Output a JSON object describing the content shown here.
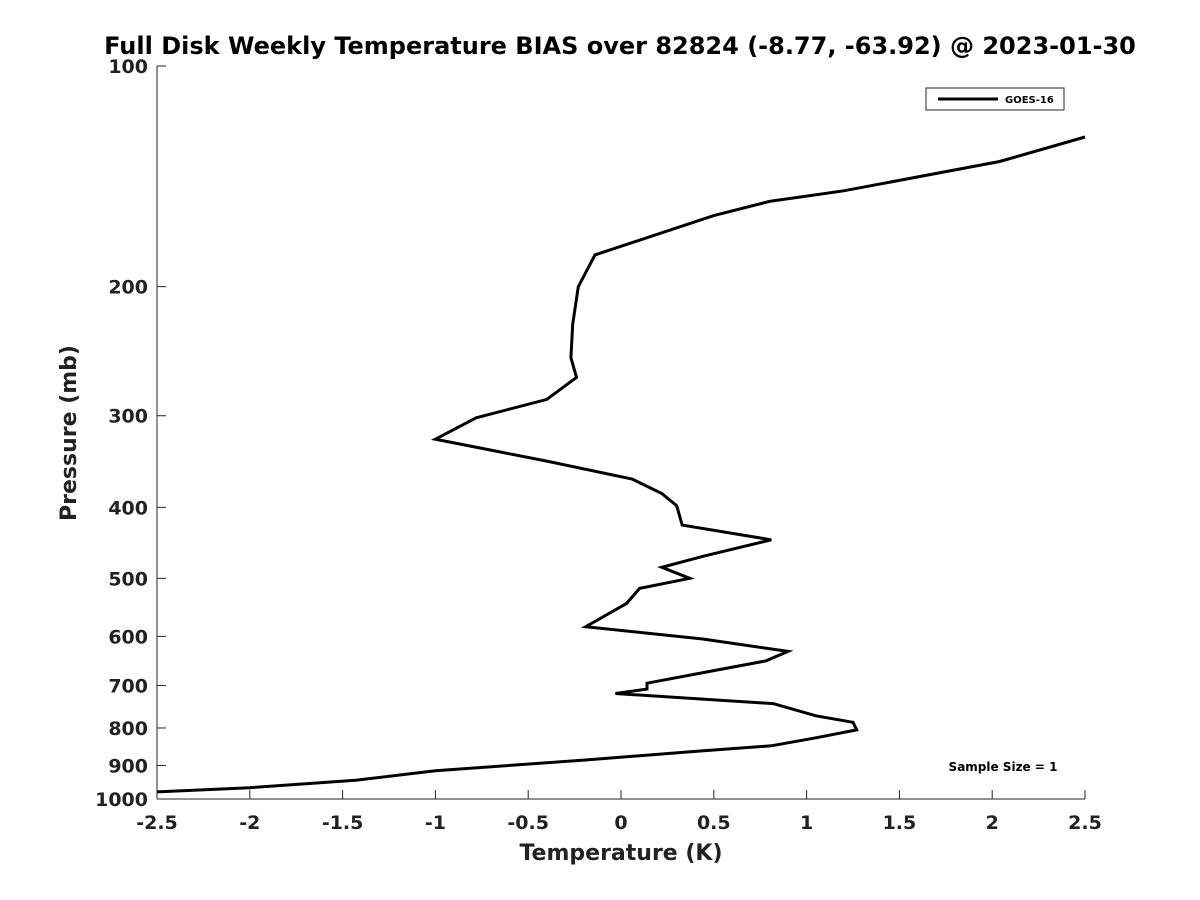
{
  "chart_data": {
    "type": "line",
    "title": "Full Disk Weekly Temperature BIAS over 82824 (-8.77, -63.92) @ 2023-01-30",
    "xlabel": "Temperature (K)",
    "ylabel": "Pressure (mb)",
    "xlim": [
      -2.5,
      2.5
    ],
    "ylim": [
      100,
      1000
    ],
    "y_scale": "log",
    "y_reversed": true,
    "grid": false,
    "x_ticks": [
      -2.5,
      -2,
      -1.5,
      -1,
      -0.5,
      0,
      0.5,
      1,
      1.5,
      2,
      2.5
    ],
    "x_tick_labels": [
      "-2.5",
      "-2",
      "-1.5",
      "-1",
      "-0.5",
      "0",
      "0.5",
      "1",
      "1.5",
      "2",
      "2.5"
    ],
    "y_ticks": [
      100,
      200,
      300,
      400,
      500,
      600,
      700,
      800,
      900,
      1000
    ],
    "y_tick_labels": [
      "100",
      "200",
      "300",
      "400",
      "500",
      "600",
      "700",
      "800",
      "900",
      "1000"
    ],
    "legend_position": "top-right",
    "annotation": "Sample Size = 1",
    "series": [
      {
        "name": "GOES-16",
        "color": "#000000",
        "points": [
          [
            2.5,
            125
          ],
          [
            2.04,
            135
          ],
          [
            1.2,
            148
          ],
          [
            0.8,
            153
          ],
          [
            0.5,
            160
          ],
          [
            -0.14,
            181
          ],
          [
            -0.23,
            200
          ],
          [
            -0.26,
            225
          ],
          [
            -0.27,
            250
          ],
          [
            -0.24,
            266
          ],
          [
            -0.4,
            285
          ],
          [
            -0.78,
            302
          ],
          [
            -1.0,
            323
          ],
          [
            -0.4,
            346
          ],
          [
            0.06,
            366
          ],
          [
            0.22,
            383
          ],
          [
            0.3,
            398
          ],
          [
            0.33,
            423
          ],
          [
            0.81,
            443
          ],
          [
            0.45,
            466
          ],
          [
            0.22,
            483
          ],
          [
            0.37,
            500
          ],
          [
            0.1,
            516
          ],
          [
            0.03,
            541
          ],
          [
            -0.19,
            582
          ],
          [
            0.44,
            605
          ],
          [
            0.9,
            629
          ],
          [
            0.78,
            648
          ],
          [
            0.5,
            668
          ],
          [
            0.14,
            695
          ],
          [
            0.14,
            708
          ],
          [
            -0.03,
            718
          ],
          [
            0.82,
            741
          ],
          [
            1.05,
            770
          ],
          [
            1.25,
            786
          ],
          [
            1.27,
            805
          ],
          [
            1.05,
            825
          ],
          [
            0.81,
            846
          ],
          [
            0.4,
            861
          ],
          [
            -0.2,
            885
          ],
          [
            -1.0,
            915
          ],
          [
            -1.43,
            943
          ],
          [
            -2.0,
            965
          ],
          [
            -2.5,
            978
          ]
        ]
      }
    ]
  }
}
